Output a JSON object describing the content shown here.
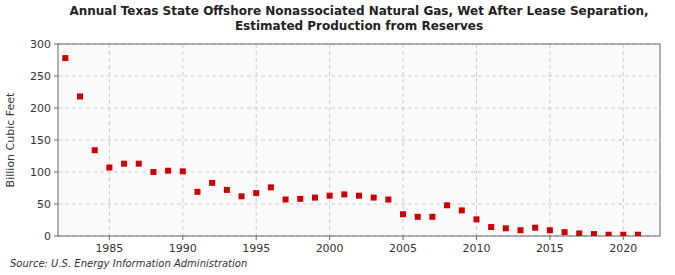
{
  "chart_data": {
    "type": "scatter",
    "title": "Annual Texas State Offshore Nonassociated Natural Gas, Wet After Lease Separation,\nEstimated Production from Reserves",
    "ylabel": "Billion Cubic Feet",
    "annotations": [
      "Source: U.S. Energy Information Administration"
    ],
    "x": [
      1982,
      1983,
      1984,
      1985,
      1986,
      1987,
      1988,
      1989,
      1990,
      1991,
      1992,
      1993,
      1994,
      1995,
      1996,
      1997,
      1998,
      1999,
      2000,
      2001,
      2002,
      2003,
      2004,
      2005,
      2006,
      2007,
      2008,
      2009,
      2010,
      2011,
      2012,
      2013,
      2014,
      2015,
      2016,
      2017,
      2018,
      2019,
      2020,
      2021
    ],
    "values": [
      278,
      218,
      134,
      107,
      113,
      113,
      100,
      102,
      101,
      69,
      83,
      72,
      62,
      67,
      76,
      57,
      58,
      60,
      63,
      65,
      63,
      60,
      57,
      34,
      30,
      30,
      48,
      40,
      26,
      14,
      12,
      9,
      13,
      9,
      6,
      4,
      3,
      2,
      2,
      2
    ],
    "color": "#cc0000",
    "marker": "square",
    "xlim": [
      1981.5,
      2022.5
    ],
    "ylim": [
      0,
      300
    ],
    "xticks": [
      1985,
      1990,
      1995,
      2000,
      2005,
      2010,
      2015,
      2020
    ],
    "yticks": [
      0,
      50,
      100,
      150,
      200,
      250,
      300
    ],
    "grid": true
  }
}
